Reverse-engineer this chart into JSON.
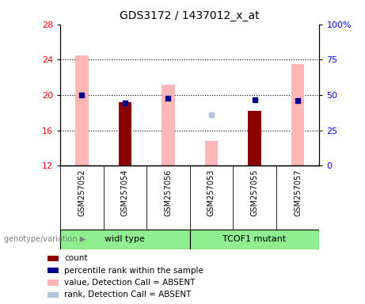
{
  "title": "GDS3172 / 1437012_x_at",
  "samples": [
    "GSM257052",
    "GSM257054",
    "GSM257056",
    "GSM257053",
    "GSM257055",
    "GSM257057"
  ],
  "groups": [
    "widl type",
    "TCOF1 mutant"
  ],
  "group_membership": [
    0,
    0,
    0,
    1,
    1,
    1
  ],
  "ylim_left": [
    12,
    28
  ],
  "ylim_right": [
    0,
    100
  ],
  "yticks_left": [
    12,
    16,
    20,
    24,
    28
  ],
  "yticks_right": [
    0,
    25,
    50,
    75,
    100
  ],
  "pink_bars": [
    24.5,
    null,
    21.2,
    14.8,
    null,
    23.5
  ],
  "dark_red_bars": [
    null,
    19.2,
    null,
    null,
    18.2,
    null
  ],
  "blue_squares_left": [
    20.0,
    19.1,
    19.6,
    null,
    19.5,
    19.4
  ],
  "light_blue_squares_left": [
    null,
    null,
    null,
    17.8,
    null,
    null
  ],
  "group1_color": "#90EE90",
  "group2_color": "#90EE90",
  "label_area_bg": "#d3d3d3",
  "genotype_label": "genotype/variation",
  "legend_colors": [
    "#8B0000",
    "#00008B",
    "#FFB6B6",
    "#B0C4DE"
  ],
  "legend_labels": [
    "count",
    "percentile rank within the sample",
    "value, Detection Call = ABSENT",
    "rank, Detection Call = ABSENT"
  ]
}
